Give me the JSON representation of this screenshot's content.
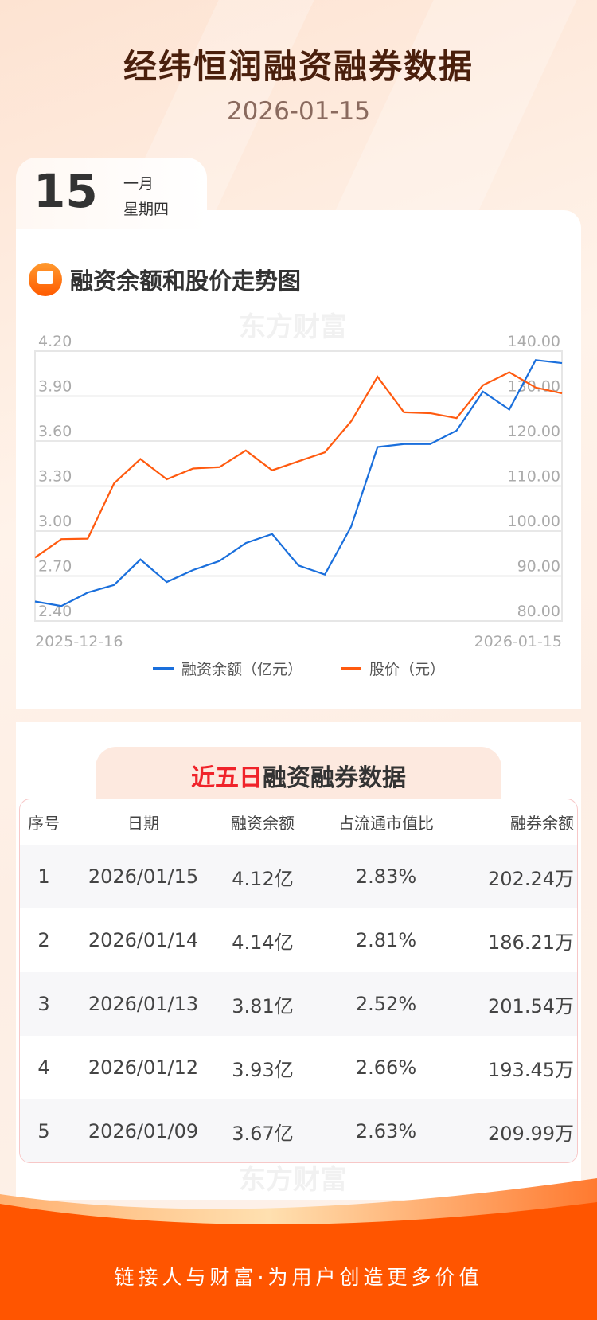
{
  "header": {
    "title": "经纬恒润融资融券数据",
    "date": "2026-01-15"
  },
  "date_card": {
    "day": "15",
    "month": "一月",
    "weekday": "星期四"
  },
  "chart_section": {
    "title": "融资余额和股价走势图",
    "watermark": "东方财富"
  },
  "chart_data": {
    "type": "line",
    "title": "融资余额和股价走势图",
    "x_start_label": "2025-12-16",
    "x_end_label": "2026-01-15",
    "left_axis": {
      "ylim": [
        2.4,
        4.2
      ],
      "ticks": [
        "4.20",
        "3.90",
        "3.60",
        "3.30",
        "3.00",
        "2.70",
        "2.40"
      ]
    },
    "right_axis": {
      "ylim": [
        80,
        140
      ],
      "ticks": [
        "140.00",
        "130.00",
        "120.00",
        "110.00",
        "100.00",
        "90.00",
        "80.00"
      ]
    },
    "grid": true,
    "legend_position": "bottom",
    "series": [
      {
        "name": "融资余额（亿元）",
        "axis": "left",
        "color": "#1a6fdc",
        "values": [
          2.53,
          2.5,
          2.59,
          2.64,
          2.81,
          2.66,
          2.74,
          2.8,
          2.92,
          2.98,
          2.77,
          2.71,
          3.03,
          3.56,
          3.58,
          3.58,
          3.67,
          3.93,
          3.81,
          4.14,
          4.12
        ]
      },
      {
        "name": "股价（元）",
        "axis": "right",
        "color": "#ff5a0f",
        "values": [
          94.1,
          98.2,
          98.3,
          110.6,
          116.0,
          111.5,
          113.9,
          114.2,
          117.9,
          113.5,
          115.5,
          117.5,
          124.4,
          134.3,
          126.4,
          126.2,
          125.1,
          132.4,
          135.3,
          131.9,
          130.6
        ]
      }
    ]
  },
  "table_section": {
    "title_highlight": "近五日",
    "title_rest": "融资融券数据",
    "headers": [
      "序号",
      "日期",
      "融资余额",
      "占流通市值比",
      "融券余额"
    ],
    "rows": [
      [
        "1",
        "2026/01/15",
        "4.12亿",
        "2.83%",
        "202.24万"
      ],
      [
        "2",
        "2026/01/14",
        "4.14亿",
        "2.81%",
        "186.21万"
      ],
      [
        "3",
        "2026/01/13",
        "3.81亿",
        "2.52%",
        "201.54万"
      ],
      [
        "4",
        "2026/01/12",
        "3.93亿",
        "2.66%",
        "193.45万"
      ],
      [
        "5",
        "2026/01/09",
        "3.67亿",
        "2.63%",
        "209.99万"
      ]
    ]
  },
  "footer": {
    "slogan": "链接人与财富·为用户创造更多价值"
  }
}
